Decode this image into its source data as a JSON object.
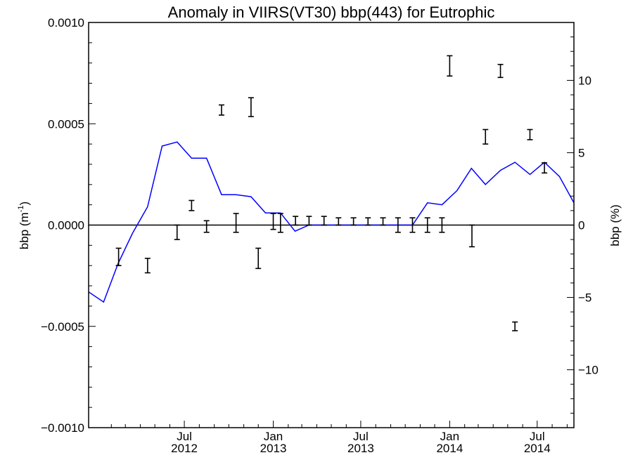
{
  "chart_data": {
    "type": "line",
    "title": "Anomaly in VIIRS(VT30) bbp(443) for Eutrophic",
    "ylabel_left": {
      "base": "bbp (m",
      "sup": "-1",
      "close": ")"
    },
    "ylabel_right": "bbp (%)",
    "xlim": [
      "2011-12-16",
      "2014-09-15"
    ],
    "ylim": [
      -0.001,
      0.001
    ],
    "ylim_right": [
      -14,
      14
    ],
    "x_ticks": [
      {
        "date": "2012-07-01",
        "month": "Jul",
        "year": "2012"
      },
      {
        "date": "2013-01-01",
        "month": "Jan",
        "year": "2013"
      },
      {
        "date": "2013-07-01",
        "month": "Jul",
        "year": "2013"
      },
      {
        "date": "2014-01-01",
        "month": "Jan",
        "year": "2014"
      },
      {
        "date": "2014-07-01",
        "month": "Jul",
        "year": "2014"
      }
    ],
    "y_ticks_left": [
      {
        "value": -0.001,
        "label": "−0.0010"
      },
      {
        "value": -0.0005,
        "label": "−0.0005"
      },
      {
        "value": 0.0,
        "label": "0.0000"
      },
      {
        "value": 0.0005,
        "label": "0.0005"
      },
      {
        "value": 0.001,
        "label": "0.0010"
      }
    ],
    "y_ticks_right": [
      {
        "value": -10,
        "label": "−10"
      },
      {
        "value": -5,
        "label": "−5"
      },
      {
        "value": 0,
        "label": "0"
      },
      {
        "value": 5,
        "label": "5"
      },
      {
        "value": 10,
        "label": "10"
      }
    ],
    "zero_line": true,
    "series": [
      {
        "type": "line",
        "axis": "left",
        "color": "#0000ff",
        "x": [
          "2011-12-16",
          "2012-01-16",
          "2012-02-15",
          "2012-03-16",
          "2012-04-16",
          "2012-05-16",
          "2012-06-16",
          "2012-07-16",
          "2012-08-16",
          "2012-09-16",
          "2012-10-16",
          "2012-11-16",
          "2012-12-16",
          "2013-01-16",
          "2013-02-15",
          "2013-03-16",
          "2013-04-16",
          "2013-05-16",
          "2013-06-16",
          "2013-07-16",
          "2013-08-16",
          "2013-09-16",
          "2013-10-16",
          "2013-11-16",
          "2013-12-16",
          "2014-01-16",
          "2014-02-15",
          "2014-03-16",
          "2014-04-16",
          "2014-05-16",
          "2014-06-16",
          "2014-07-16",
          "2014-08-16",
          "2014-09-15"
        ],
        "y": [
          -0.00033,
          -0.00038,
          -0.00019,
          -4e-05,
          9e-05,
          0.00039,
          0.00041,
          0.00033,
          0.00033,
          0.00015,
          0.00015,
          0.00014,
          6e-05,
          6e-05,
          -3e-05,
          0.0,
          0.0,
          0.0,
          0.0,
          0.0,
          0.0,
          0.0,
          0.0,
          0.00011,
          0.0001,
          0.00017,
          0.00028,
          0.0002,
          0.00027,
          0.00031,
          0.00025,
          0.00031,
          0.00024,
          0.00011
        ]
      },
      {
        "type": "errorbar",
        "axis": "right",
        "color": "#000000",
        "x": [
          "2012-02-16",
          "2012-04-16",
          "2012-06-16",
          "2012-07-16",
          "2012-08-16",
          "2012-09-16",
          "2012-10-16",
          "2012-11-16",
          "2012-12-01",
          "2013-01-01",
          "2013-01-16",
          "2013-02-16",
          "2013-03-16",
          "2013-04-16",
          "2013-05-16",
          "2013-06-16",
          "2013-07-16",
          "2013-08-16",
          "2013-09-16",
          "2013-10-16",
          "2013-11-16",
          "2013-12-16",
          "2014-01-01",
          "2014-02-16",
          "2014-03-16",
          "2014-04-16",
          "2014-05-16",
          "2014-06-16",
          "2014-07-16"
        ],
        "low": [
          -2.8,
          -3.3,
          -1.0,
          1.0,
          -0.5,
          7.6,
          -0.5,
          7.5,
          -3.0,
          -0.3,
          -0.5,
          0.0,
          0.0,
          0.0,
          0.0,
          0.0,
          0.0,
          0.0,
          -0.5,
          -0.5,
          -0.5,
          -0.5,
          10.3,
          -1.5,
          5.6,
          10.2,
          -7.3,
          5.9,
          3.6
        ],
        "high": [
          -1.6,
          -2.3,
          0.0,
          1.7,
          0.3,
          8.3,
          0.8,
          8.8,
          -1.6,
          0.8,
          0.8,
          0.6,
          0.6,
          0.6,
          0.5,
          0.5,
          0.5,
          0.5,
          0.5,
          0.5,
          0.5,
          0.5,
          11.7,
          0.0,
          6.6,
          11.1,
          -6.7,
          6.6,
          4.3
        ]
      }
    ]
  }
}
